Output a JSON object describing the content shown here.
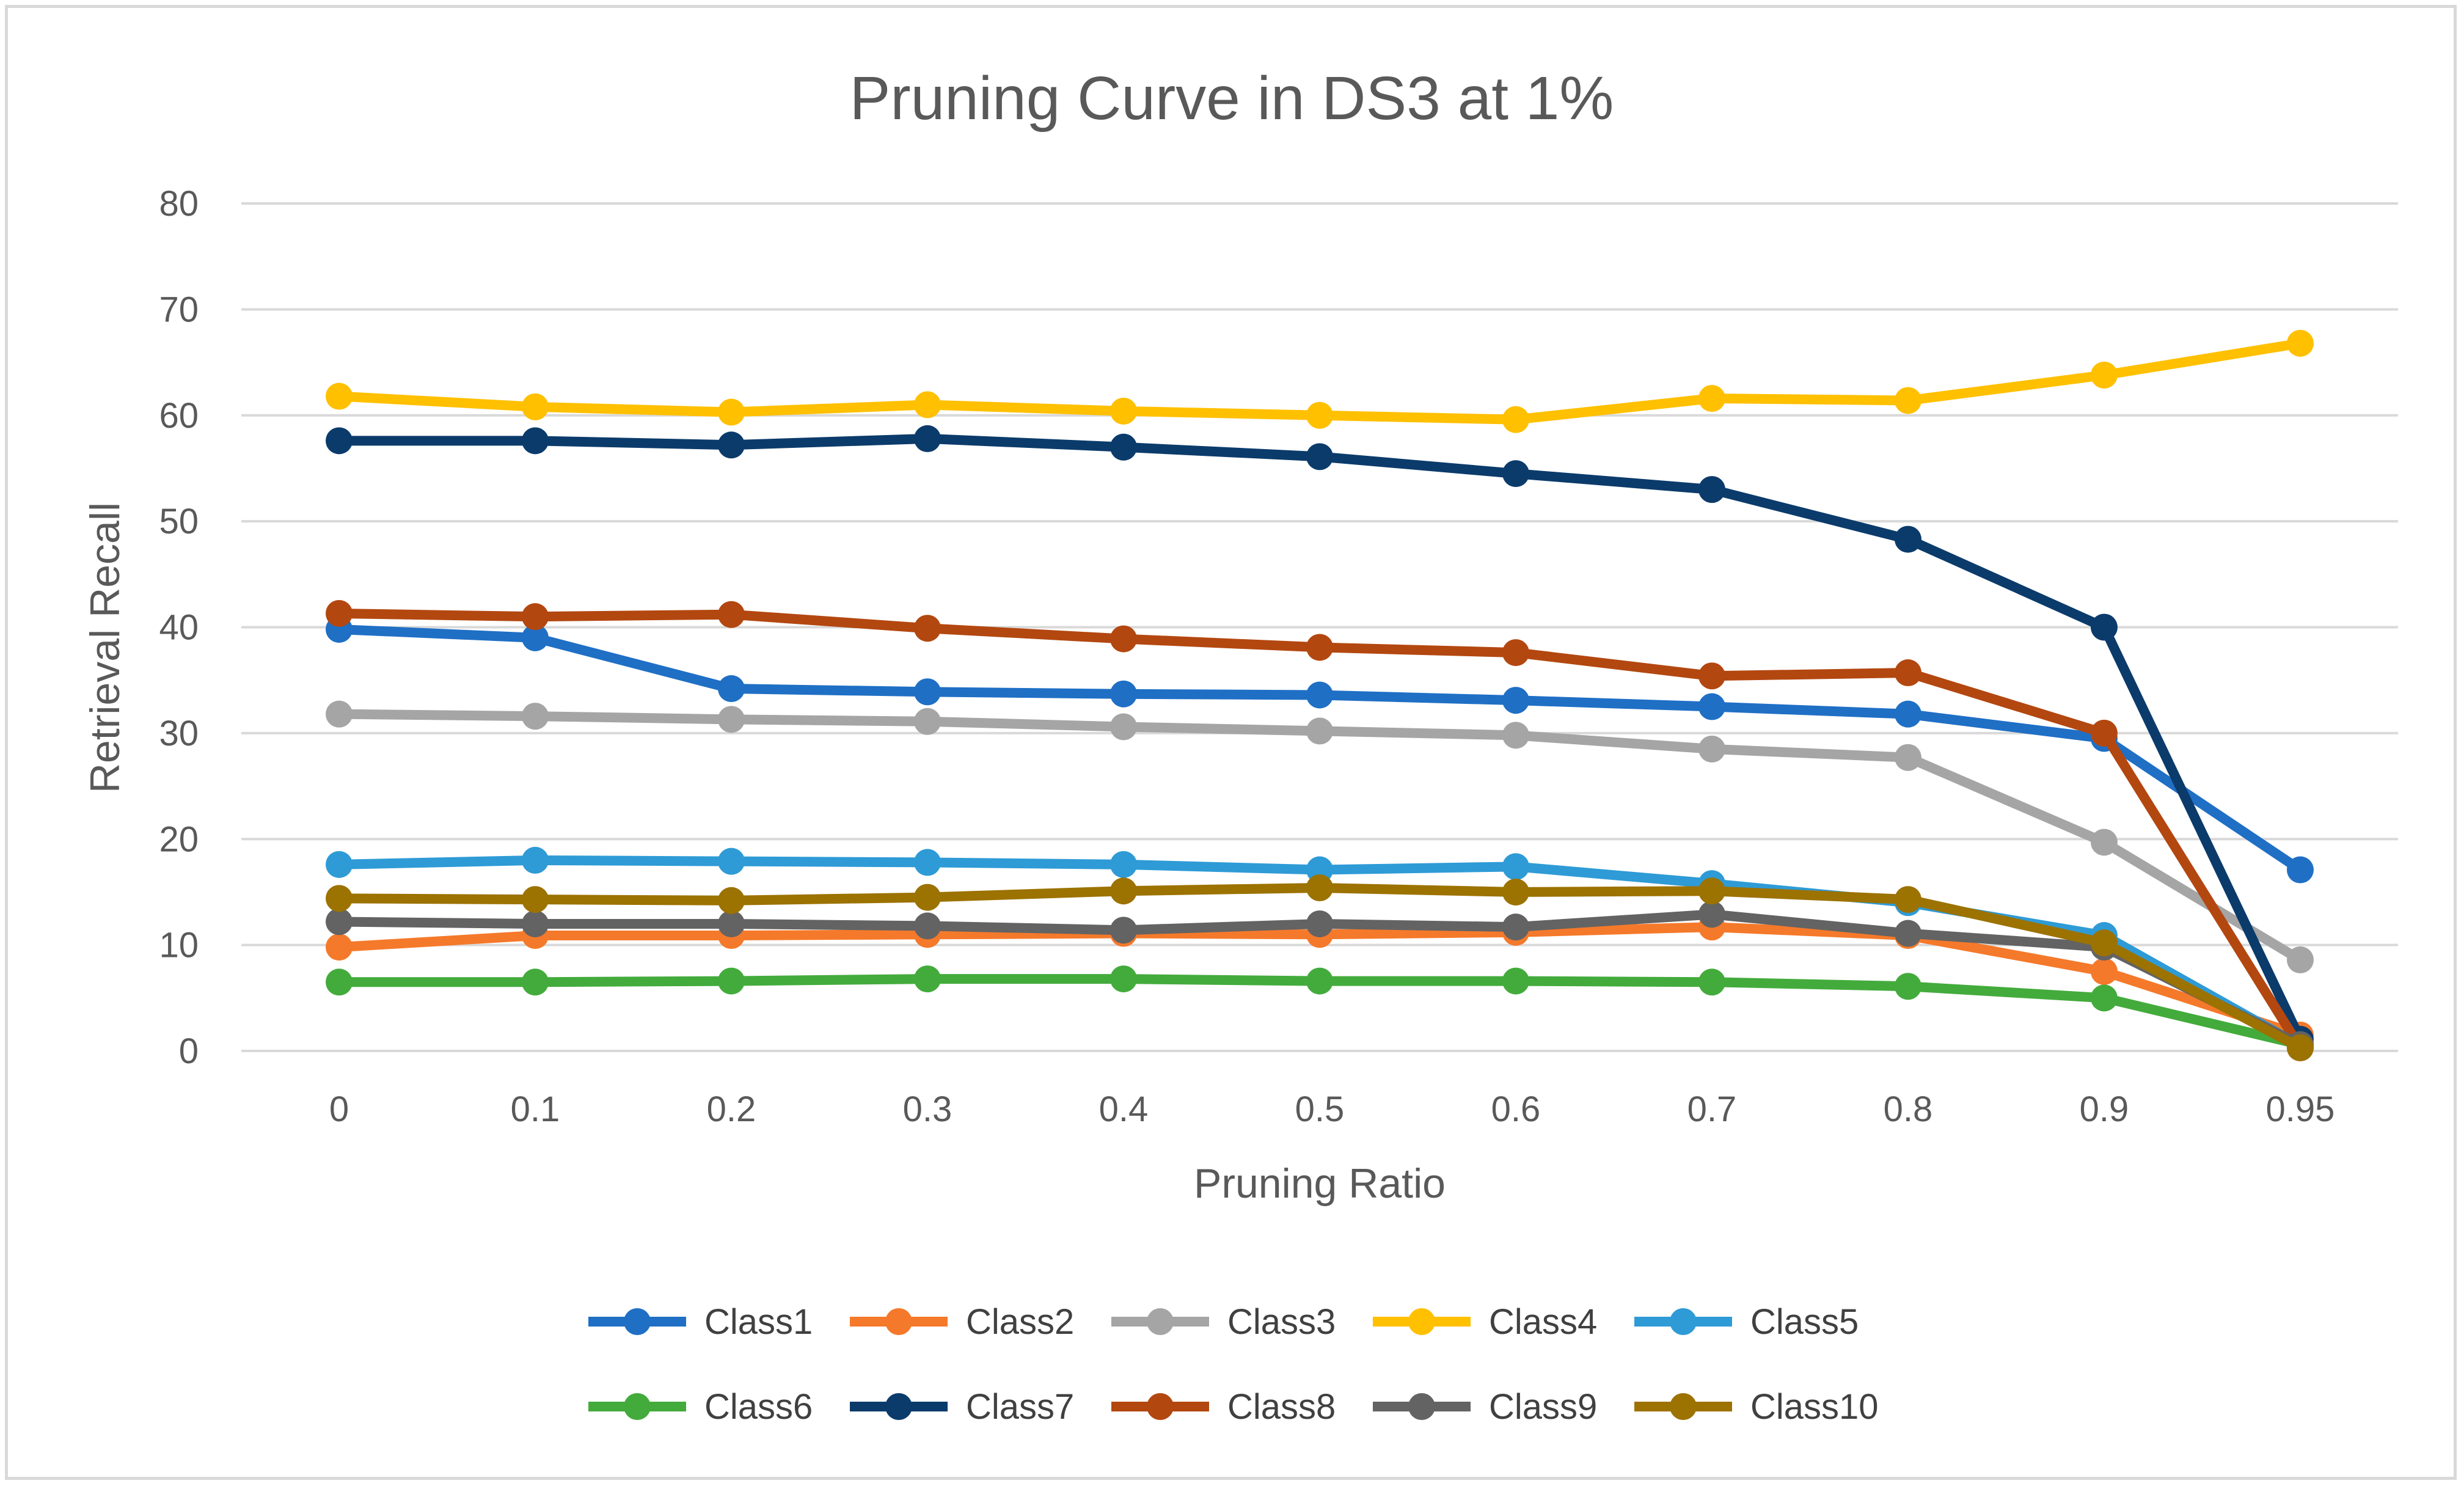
{
  "chart_data": {
    "type": "line",
    "title": "Pruning Curve in DS3 at 1%",
    "xlabel": "Pruning Ratio",
    "ylabel": "Retrieval Recall",
    "categories": [
      "0",
      "0.1",
      "0.2",
      "0.3",
      "0.4",
      "0.5",
      "0.6",
      "0.7",
      "0.8",
      "0.9",
      "0.95"
    ],
    "ylim": [
      0,
      80
    ],
    "yticks": [
      0,
      10,
      20,
      30,
      40,
      50,
      60,
      70,
      80
    ],
    "grid": true,
    "legend_position": "bottom",
    "series": [
      {
        "name": "Class1",
        "color": "#1f6fc5",
        "values": [
          39.8,
          39.0,
          34.2,
          33.9,
          33.7,
          33.6,
          33.1,
          32.5,
          31.8,
          29.5,
          17.1
        ]
      },
      {
        "name": "Class2",
        "color": "#f5792a",
        "values": [
          9.8,
          10.9,
          10.9,
          11.0,
          11.1,
          11.0,
          11.2,
          11.7,
          10.9,
          7.5,
          1.5
        ]
      },
      {
        "name": "Class3",
        "color": "#a5a5a5",
        "values": [
          31.8,
          31.6,
          31.3,
          31.1,
          30.6,
          30.2,
          29.8,
          28.5,
          27.7,
          19.7,
          8.6
        ]
      },
      {
        "name": "Class4",
        "color": "#ffc000",
        "values": [
          61.8,
          60.8,
          60.3,
          61.0,
          60.4,
          60.0,
          59.6,
          61.6,
          61.4,
          63.8,
          66.8
        ]
      },
      {
        "name": "Class5",
        "color": "#2e9bd6",
        "values": [
          17.6,
          18.0,
          17.9,
          17.8,
          17.6,
          17.1,
          17.4,
          15.8,
          14.0,
          10.9,
          0.5
        ]
      },
      {
        "name": "Class6",
        "color": "#43ab3c",
        "values": [
          6.5,
          6.5,
          6.6,
          6.8,
          6.8,
          6.6,
          6.6,
          6.5,
          6.1,
          5.0,
          0.6
        ]
      },
      {
        "name": "Class7",
        "color": "#0b3b6b",
        "values": [
          57.6,
          57.6,
          57.2,
          57.8,
          57.0,
          56.1,
          54.5,
          53.0,
          48.3,
          40.0,
          1.1
        ]
      },
      {
        "name": "Class8",
        "color": "#b34710",
        "values": [
          41.3,
          41.0,
          41.2,
          39.9,
          38.9,
          38.1,
          37.6,
          35.4,
          35.7,
          30.0,
          0.3
        ]
      },
      {
        "name": "Class9",
        "color": "#636363",
        "values": [
          12.2,
          12.0,
          12.0,
          11.8,
          11.4,
          12.0,
          11.7,
          12.9,
          11.1,
          9.8,
          0.6
        ]
      },
      {
        "name": "Class10",
        "color": "#9c7200",
        "values": [
          14.4,
          14.3,
          14.2,
          14.5,
          15.1,
          15.4,
          15.0,
          15.1,
          14.3,
          10.2,
          0.3
        ]
      }
    ]
  }
}
